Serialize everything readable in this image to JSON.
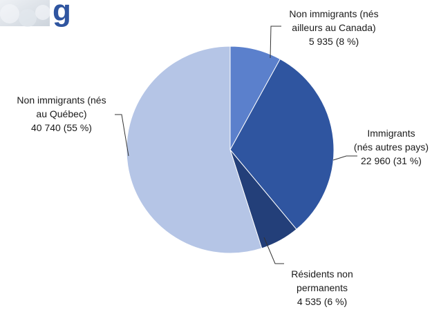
{
  "header": {
    "partial_title_glyph": "g"
  },
  "chart_data": {
    "type": "pie",
    "title": "",
    "start_angle_deg": 0,
    "direction": "clockwise",
    "slices": [
      {
        "label_lines": [
          "Non immigrants (nés",
          "ailleurs au Canada)",
          "5 935 (8 %)"
        ],
        "value": 5935,
        "percent": 8,
        "color": "#5b80cc"
      },
      {
        "label_lines": [
          "Immigrants",
          "(nés autres pays)",
          "22 960 (31 %)"
        ],
        "value": 22960,
        "percent": 31,
        "color": "#2f55a0"
      },
      {
        "label_lines": [
          "Résidents non",
          "permanents",
          "4 535 (6 %)"
        ],
        "value": 4535,
        "percent": 6,
        "color": "#233f79"
      },
      {
        "label_lines": [
          "Non immigrants (nés",
          "au Québec)",
          "40 740 (55 %)"
        ],
        "value": 40740,
        "percent": 55,
        "color": "#b5c5e6"
      }
    ]
  }
}
